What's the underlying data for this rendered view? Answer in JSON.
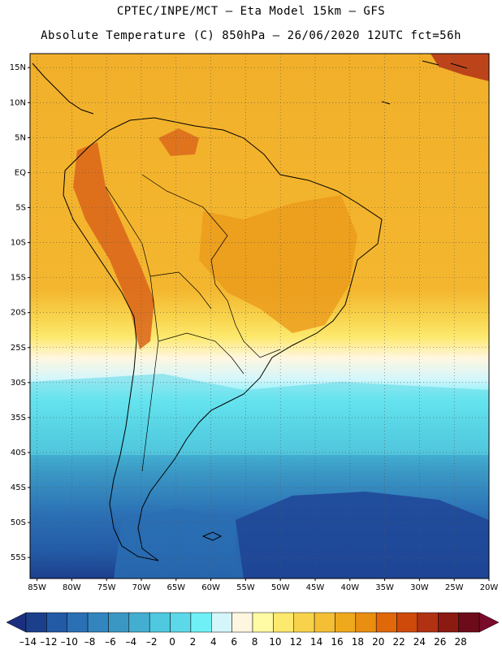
{
  "header": {
    "line1": "CPTEC/INPE/MCT –  Eta Model 15km – GFS",
    "line2": "Absolute Temperature (C) 850hPa – 26/06/2020 12UTC fct=56h"
  },
  "map": {
    "region": "South America",
    "lat_range": [
      -58,
      17
    ],
    "lon_range": [
      -86,
      -20
    ],
    "grid": "dotted",
    "lat_labels": [
      "15N",
      "10N",
      "5N",
      "EQ",
      "5S",
      "10S",
      "15S",
      "20S",
      "25S",
      "30S",
      "35S",
      "40S",
      "45S",
      "50S",
      "55S"
    ],
    "lat_values": [
      15,
      10,
      5,
      0,
      -5,
      -10,
      -15,
      -20,
      -25,
      -30,
      -35,
      -40,
      -45,
      -50,
      -55
    ],
    "lon_labels": [
      "85W",
      "80W",
      "75W",
      "70W",
      "65W",
      "60W",
      "55W",
      "50W",
      "45W",
      "40W",
      "35W",
      "30W",
      "25W",
      "20W"
    ],
    "lon_values": [
      -85,
      -80,
      -75,
      -70,
      -65,
      -60,
      -55,
      -50,
      -45,
      -40,
      -35,
      -30,
      -25,
      -20
    ]
  },
  "colorbar": {
    "labels": [
      "-14",
      "-12",
      "-10",
      "-8",
      "-6",
      "-4",
      "-2",
      "0",
      "2",
      "4",
      "6",
      "8",
      "10",
      "12",
      "14",
      "16",
      "18",
      "20",
      "22",
      "24",
      "26",
      "28"
    ],
    "colors": [
      "#1c3f8c",
      "#235aa6",
      "#2b6fb4",
      "#3385bf",
      "#3a97c4",
      "#44aed0",
      "#4ec9df",
      "#5cd8e8",
      "#6ff0f6",
      "#d4f6fb",
      "#fff6e0",
      "#fffaa4",
      "#fde96d",
      "#f8d24b",
      "#f4bf35",
      "#efa91c",
      "#e98e10",
      "#e0670a",
      "#cd4a0b",
      "#b03213",
      "#8b1a13",
      "#6e0b1a"
    ],
    "end_low": "#1a2f80",
    "end_high": "#7a0a2a"
  }
}
